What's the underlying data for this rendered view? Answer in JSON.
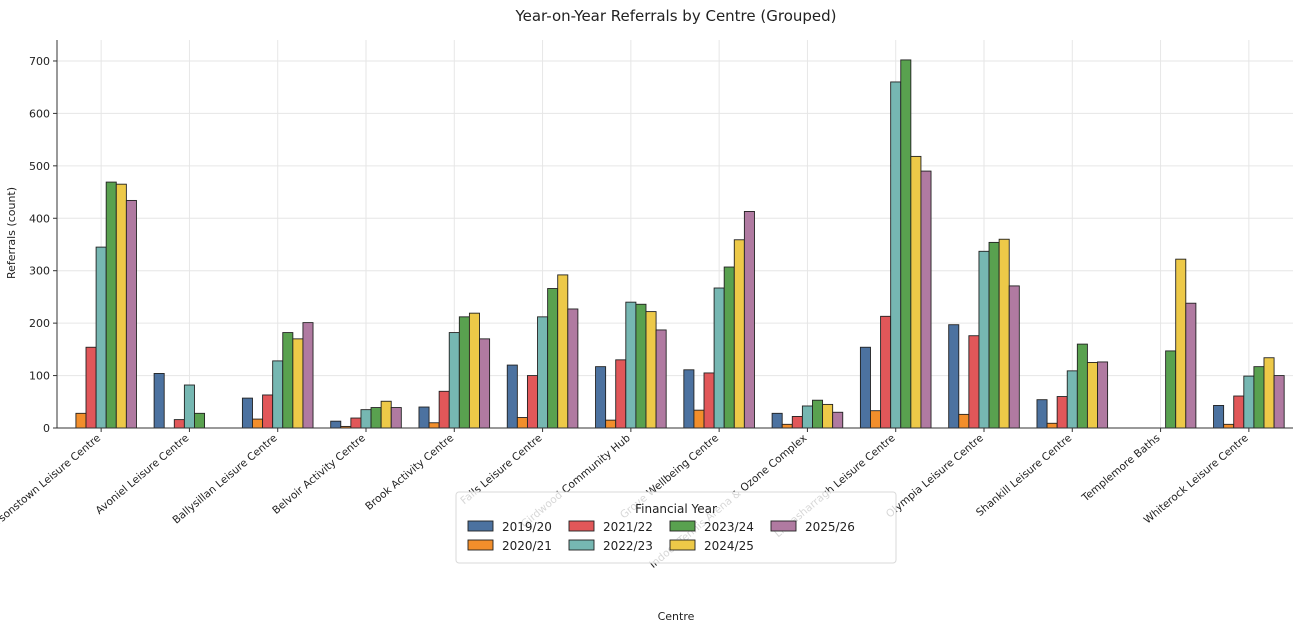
{
  "chart_data": {
    "type": "bar",
    "title": "Year-on-Year Referrals by Centre (Grouped)",
    "xlabel": "Centre",
    "ylabel": "Referrals (count)",
    "ylim": [
      0,
      740
    ],
    "yticks": [
      0,
      100,
      200,
      300,
      400,
      500,
      600,
      700
    ],
    "grid": true,
    "legend": {
      "title": "Financial Year",
      "placement": "bottom-center",
      "columns": 4
    },
    "categories": [
      "Andersonstown Leisure Centre",
      "Avoniel Leisure Centre",
      "Ballysillan Leisure Centre",
      "Belvoir Activity Centre",
      "Brook Activity Centre",
      "Falls Leisure Centre",
      "Girdwood Community Hub",
      "Grove Wellbeing Centre",
      "Indoor Tennis Arena & Ozone Complex",
      "Lisnasharragh Leisure Centre",
      "Olympia Leisure Centre",
      "Shankill Leisure Centre",
      "Templemore Baths",
      "Whiterock Leisure Centre"
    ],
    "series": [
      {
        "name": "2019/20",
        "color": "#4c72a0",
        "values": [
          0,
          104,
          57,
          13,
          40,
          120,
          117,
          111,
          28,
          154,
          197,
          54,
          0,
          43
        ]
      },
      {
        "name": "2020/21",
        "color": "#f28e2b",
        "values": [
          28,
          0,
          17,
          3,
          10,
          20,
          15,
          34,
          7,
          33,
          26,
          9,
          0,
          7
        ]
      },
      {
        "name": "2021/22",
        "color": "#e15759",
        "values": [
          154,
          16,
          63,
          19,
          70,
          100,
          130,
          105,
          22,
          213,
          176,
          60,
          0,
          61
        ]
      },
      {
        "name": "2022/23",
        "color": "#76b7b2",
        "values": [
          345,
          82,
          128,
          35,
          182,
          212,
          240,
          267,
          42,
          660,
          337,
          109,
          0,
          99
        ]
      },
      {
        "name": "2023/24",
        "color": "#59a14f",
        "values": [
          469,
          28,
          182,
          39,
          212,
          266,
          236,
          307,
          53,
          702,
          354,
          160,
          147,
          117
        ]
      },
      {
        "name": "2024/25",
        "color": "#edc948",
        "values": [
          465,
          0,
          170,
          51,
          219,
          292,
          222,
          359,
          45,
          518,
          360,
          125,
          322,
          134
        ]
      },
      {
        "name": "2025/26",
        "color": "#b07aa1",
        "values": [
          434,
          0,
          201,
          39,
          170,
          227,
          187,
          413,
          30,
          490,
          271,
          126,
          238,
          100
        ]
      }
    ]
  }
}
